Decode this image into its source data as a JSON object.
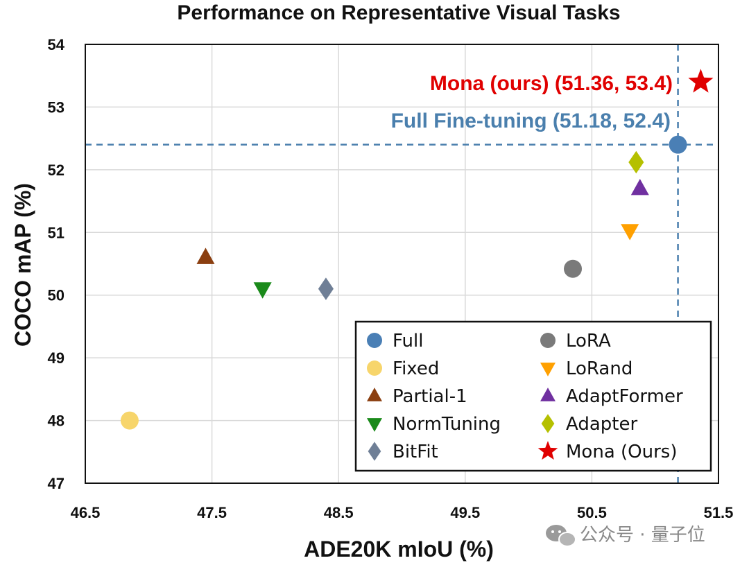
{
  "chart_data": {
    "type": "scatter",
    "title": "Performance on Representative Visual Tasks",
    "xlabel": "ADE20K mIoU (%)",
    "ylabel": "COCO mAP (%)",
    "xlim": [
      46.5,
      51.5
    ],
    "ylim": [
      47,
      54
    ],
    "xticks": [
      "46.5",
      "47.5",
      "48.5",
      "49.5",
      "50.5",
      "51.5"
    ],
    "yticks": [
      "47",
      "48",
      "49",
      "50",
      "51",
      "52",
      "53",
      "54"
    ],
    "grid": true,
    "legend_position": "bottom-right",
    "reference_lines": {
      "x": 51.18,
      "y": 52.4,
      "color": "#4a7fad"
    },
    "series": [
      {
        "name": "Full",
        "marker": "circle",
        "color": "#4a7fb5",
        "x": 51.18,
        "y": 52.4
      },
      {
        "name": "Fixed",
        "marker": "circle",
        "color": "#f7d56b",
        "x": 46.85,
        "y": 48.0
      },
      {
        "name": "Partial-1",
        "marker": "triangle-up",
        "color": "#8b3f10",
        "x": 47.45,
        "y": 50.6
      },
      {
        "name": "NormTuning",
        "marker": "triangle-down",
        "color": "#1a8a1a",
        "x": 47.9,
        "y": 50.1
      },
      {
        "name": "BitFit",
        "marker": "diamond",
        "color": "#6f7f96",
        "x": 48.4,
        "y": 50.1
      },
      {
        "name": "LoRA",
        "marker": "circle",
        "color": "#7a7a7a",
        "x": 50.35,
        "y": 50.42
      },
      {
        "name": "LoRand",
        "marker": "triangle-down",
        "color": "#ffa000",
        "x": 50.8,
        "y": 51.03
      },
      {
        "name": "AdaptFormer",
        "marker": "triangle-up",
        "color": "#7030a0",
        "x": 50.88,
        "y": 51.7
      },
      {
        "name": "Adapter",
        "marker": "diamond",
        "color": "#b5c000",
        "x": 50.85,
        "y": 52.12
      },
      {
        "name": "Mona (Ours)",
        "marker": "star",
        "color": "#e00000",
        "x": 51.36,
        "y": 53.4
      }
    ],
    "annotations": [
      {
        "text": "Mona (ours) (51.36, 53.4)",
        "color": "#e00000"
      },
      {
        "text": "Full Fine-tuning (51.18, 52.4)",
        "color": "#4a7fad"
      }
    ]
  },
  "watermark": "公众号 · 量子位"
}
